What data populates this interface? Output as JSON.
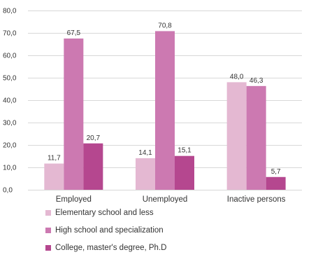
{
  "chart_data": {
    "type": "bar",
    "title": "",
    "xlabel": "",
    "ylabel": "",
    "ylim": [
      0,
      80
    ],
    "yticks": [
      "0,0",
      "10,0",
      "20,0",
      "30,0",
      "40,0",
      "50,0",
      "60,0",
      "70,0",
      "80,0"
    ],
    "grid": true,
    "legend_position": "bottom-left",
    "categories": [
      "Employed",
      "Unemployed",
      "Inactive persons"
    ],
    "series": [
      {
        "name": "Elementary school and less",
        "values": [
          11.7,
          14.1,
          48.0
        ],
        "labels": [
          "11,7",
          "14,1",
          "48,0"
        ],
        "color": "#e4b8d2"
      },
      {
        "name": "High school and specialization",
        "values": [
          67.5,
          70.8,
          46.3
        ],
        "labels": [
          "67,5",
          "70,8",
          "46,3"
        ],
        "color": "#cc79b1"
      },
      {
        "name": "College, master's degree, Ph.D",
        "values": [
          20.7,
          15.1,
          5.7
        ],
        "labels": [
          "20,7",
          "15,1",
          "5,7"
        ],
        "color": "#b5478f"
      }
    ]
  }
}
